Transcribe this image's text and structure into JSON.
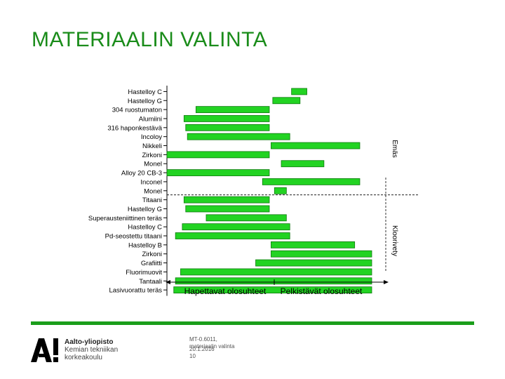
{
  "slide": {
    "title": "MATERIAALIN VALINTA"
  },
  "chart_data": {
    "type": "bar",
    "orientation": "horizontal-range",
    "categories": [
      "Hastelloy C",
      "Hastelloy G",
      "304 ruostumaton",
      "Alumiini",
      "316 haponkestävä",
      "Incoloy",
      "Nikkeli",
      "Zirkoni",
      "Monel",
      "Alloy 20 CB-3",
      "Inconel",
      "Monel",
      "Titaani",
      "Hastelloy G",
      "Superausteniittinen teräs",
      "Hastelloy C",
      "Pd-seostettu titaani",
      "Hastelloy B",
      "Zirkoni",
      "Grafiitti",
      "Fluorimuovit",
      "Tantaali",
      "Lasivuorattu teräs"
    ],
    "ranges": [
      [
        0.73,
        0.82
      ],
      [
        0.62,
        0.78
      ],
      [
        0.17,
        0.6
      ],
      [
        0.1,
        0.6
      ],
      [
        0.11,
        0.6
      ],
      [
        0.12,
        0.72
      ],
      [
        0.61,
        1.13
      ],
      [
        0.0,
        0.6
      ],
      [
        0.67,
        0.92
      ],
      [
        0.0,
        0.6
      ],
      [
        0.56,
        1.13
      ],
      [
        0.63,
        0.7
      ],
      [
        0.1,
        0.6
      ],
      [
        0.11,
        0.6
      ],
      [
        0.23,
        0.7
      ],
      [
        0.09,
        0.72
      ],
      [
        0.05,
        0.72
      ],
      [
        0.61,
        1.1
      ],
      [
        0.61,
        1.2
      ],
      [
        0.52,
        1.2
      ],
      [
        0.08,
        1.2
      ],
      [
        0.05,
        1.2
      ],
      [
        0.04,
        1.2
      ]
    ],
    "xlim": [
      0,
      1.2
    ],
    "divider_after_index": 11,
    "x_regions": [
      "Hapettavat olosuhteet",
      "Pelkistävät olosuhteet"
    ],
    "right_labels": [
      "Emäs",
      "Kloorivety"
    ],
    "colors": {
      "bar": "#22d322",
      "bar_edge": "#0f7a0f",
      "axis": "#000000"
    },
    "grid": false,
    "legend": "none"
  },
  "footer": {
    "org_lines": [
      "Aalto-yliopisto",
      "Kemian tekniikan",
      "korkeakoulu"
    ],
    "meta_lines": [
      "MT-0.6011,",
      "materiaalin valinta",
      "20.1.2016",
      "10"
    ],
    "accent": "#1a9e1a"
  }
}
